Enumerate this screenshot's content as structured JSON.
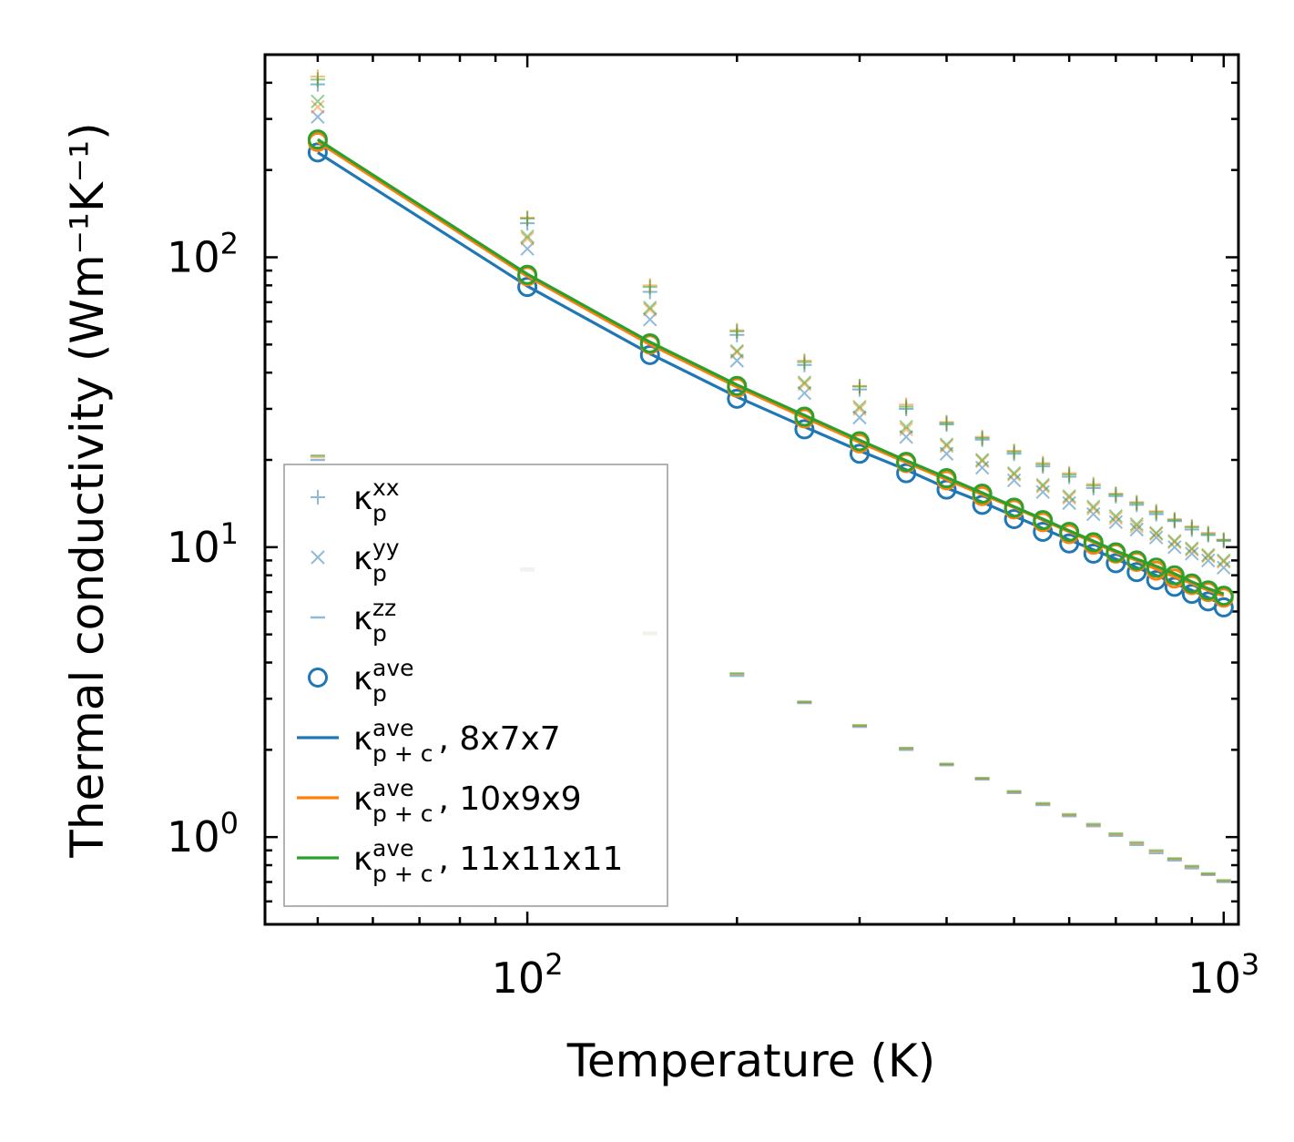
{
  "chart_data": {
    "type": "line",
    "xscale": "log",
    "yscale": "log",
    "xlabel": "Temperature (K)",
    "ylabel": "Thermal conductivity (Wm⁻¹K⁻¹)",
    "xlim": [
      42,
      1050
    ],
    "ylim": [
      0.5,
      500
    ],
    "x_ticks": [
      {
        "base": "10",
        "exp": "2",
        "value": 100
      },
      {
        "base": "10",
        "exp": "3",
        "value": 1000
      }
    ],
    "y_ticks": [
      {
        "base": "10",
        "exp": "0",
        "value": 1
      },
      {
        "base": "10",
        "exp": "1",
        "value": 10
      },
      {
        "base": "10",
        "exp": "2",
        "value": 100
      }
    ],
    "legend_position": "lower-left",
    "temperatures": [
      50,
      100,
      150,
      200,
      250,
      300,
      350,
      400,
      450,
      500,
      550,
      600,
      650,
      700,
      750,
      800,
      850,
      900,
      950,
      1000
    ],
    "grids": [
      {
        "name": "8x7x7",
        "color": "#1f77b4",
        "kxx": [
          395,
          131,
          76,
          54,
          42.5,
          35,
          30,
          26.5,
          23.5,
          21,
          19,
          17.5,
          16,
          15,
          14,
          13,
          12.3,
          11.5,
          11,
          10.5
        ],
        "kyy": [
          305,
          107,
          61,
          44,
          34,
          28,
          24,
          21,
          18.8,
          17,
          15.5,
          14.2,
          13,
          12.2,
          11.5,
          10.8,
          10,
          9.5,
          9,
          8.5
        ],
        "kzz": [
          20,
          8.3,
          5.0,
          3.6,
          2.9,
          2.4,
          2.0,
          1.77,
          1.58,
          1.42,
          1.29,
          1.18,
          1.09,
          1.01,
          0.94,
          0.88,
          0.83,
          0.78,
          0.74,
          0.7
        ],
        "kave": [
          230,
          79,
          46,
          32.5,
          25.5,
          21,
          18,
          15.8,
          14,
          12.5,
          11.3,
          10.3,
          9.5,
          8.8,
          8.2,
          7.7,
          7.3,
          6.9,
          6.5,
          6.2
        ],
        "kpc": [
          230,
          79.5,
          46.5,
          33,
          26,
          21.5,
          18.5,
          16,
          14.3,
          12.8,
          11.6,
          10.6,
          9.8,
          9.1,
          8.5,
          8.0,
          7.5,
          7.1,
          6.7,
          6.3
        ]
      },
      {
        "name": "10x9x9",
        "color": "#ff7f0e",
        "kxx": [
          420,
          137,
          80,
          56,
          44,
          36,
          31,
          27,
          24,
          21.5,
          19.5,
          18,
          16.5,
          15.3,
          14.3,
          13.3,
          12.5,
          11.8,
          11.2,
          10.6
        ],
        "kyy": [
          330,
          116,
          66,
          47,
          36.5,
          30,
          25.5,
          22.3,
          19.8,
          17.8,
          16.2,
          14.8,
          13.6,
          12.6,
          11.8,
          11.1,
          10.4,
          9.8,
          9.3,
          8.9
        ],
        "kzz": [
          20.5,
          8.4,
          5.05,
          3.65,
          2.92,
          2.42,
          2.02,
          1.78,
          1.59,
          1.43,
          1.3,
          1.19,
          1.1,
          1.02,
          0.95,
          0.89,
          0.84,
          0.79,
          0.745,
          0.705
        ],
        "kave": [
          250,
          86,
          50,
          35.5,
          27.8,
          22.8,
          19.5,
          17,
          15,
          13.5,
          12.2,
          11.1,
          10.2,
          9.5,
          8.9,
          8.3,
          7.8,
          7.4,
          7.0,
          6.7
        ],
        "kpc": [
          250,
          86,
          50,
          35.7,
          28,
          23,
          19.6,
          17.1,
          15.2,
          13.7,
          12.4,
          11.3,
          10.4,
          9.6,
          9.0,
          8.4,
          7.9,
          7.5,
          7.1,
          6.8
        ]
      },
      {
        "name": "11x11x11",
        "color": "#2ca02c",
        "kxx": [
          410,
          136,
          79,
          55.5,
          43.5,
          35.8,
          30.5,
          26.8,
          23.8,
          21.3,
          19.3,
          17.8,
          16.3,
          15.2,
          14.2,
          13.2,
          12.4,
          11.7,
          11.1,
          10.6
        ],
        "kyy": [
          345,
          118,
          67,
          47.5,
          37,
          30.5,
          26,
          22.6,
          20,
          18,
          16.4,
          15,
          13.8,
          12.8,
          12,
          11.2,
          10.5,
          9.9,
          9.4,
          9.0
        ],
        "kzz": [
          20.7,
          8.45,
          5.08,
          3.67,
          2.93,
          2.43,
          2.03,
          1.79,
          1.6,
          1.44,
          1.31,
          1.2,
          1.11,
          1.03,
          0.96,
          0.9,
          0.845,
          0.795,
          0.75,
          0.71
        ],
        "kave": [
          255,
          87,
          50.5,
          36,
          28.2,
          23.2,
          19.7,
          17.3,
          15.3,
          13.7,
          12.4,
          11.3,
          10.4,
          9.6,
          9.0,
          8.5,
          8.0,
          7.5,
          7.1,
          6.8
        ],
        "kpc": [
          255,
          87.5,
          51,
          36.3,
          28.5,
          23.4,
          19.9,
          17.4,
          15.4,
          13.8,
          12.5,
          11.4,
          10.5,
          9.7,
          9.1,
          8.6,
          8.1,
          7.6,
          7.2,
          6.9
        ]
      }
    ],
    "legend": [
      {
        "symbol": "plus",
        "color": "#1f77b4",
        "alpha": 0.5,
        "main": "κ",
        "sub": "p",
        "sup": "xx",
        "suffix": ""
      },
      {
        "symbol": "cross",
        "color": "#1f77b4",
        "alpha": 0.5,
        "main": "κ",
        "sub": "p",
        "sup": "yy",
        "suffix": ""
      },
      {
        "symbol": "dash",
        "color": "#1f77b4",
        "alpha": 0.5,
        "main": "κ",
        "sub": "p",
        "sup": "zz",
        "suffix": ""
      },
      {
        "symbol": "circle",
        "color": "#1f77b4",
        "alpha": 1,
        "main": "κ",
        "sub": "p",
        "sup": "ave",
        "suffix": ""
      },
      {
        "symbol": "line",
        "color": "#1f77b4",
        "alpha": 1,
        "main": "κ",
        "sub": "p + c",
        "sup": "ave",
        "suffix": ", 8x7x7"
      },
      {
        "symbol": "line",
        "color": "#ff7f0e",
        "alpha": 1,
        "main": "κ",
        "sub": "p + c",
        "sup": "ave",
        "suffix": ", 10x9x9"
      },
      {
        "symbol": "line",
        "color": "#2ca02c",
        "alpha": 1,
        "main": "κ",
        "sub": "p + c",
        "sup": "ave",
        "suffix": ", 11x11x11"
      }
    ]
  }
}
